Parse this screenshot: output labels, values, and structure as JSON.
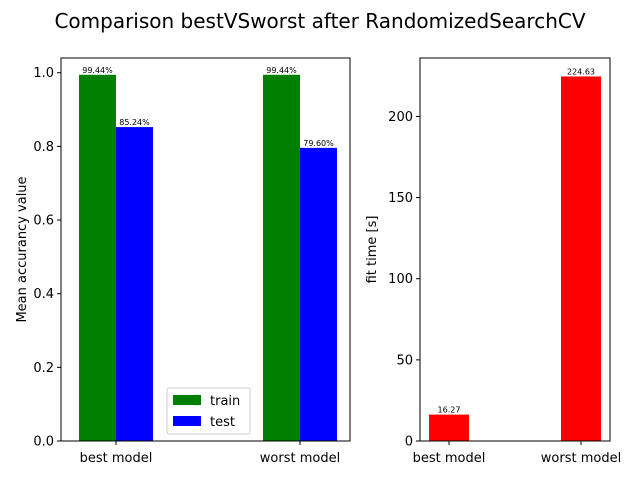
{
  "figure": {
    "title": "Comparison bestVSworst after RandomizedSearchCV"
  },
  "chart_data": [
    {
      "type": "bar",
      "categories": [
        "best model",
        "worst model"
      ],
      "series": [
        {
          "name": "train",
          "values": [
            0.9944,
            0.9944
          ],
          "color": "#008000",
          "labels": [
            "99.44%",
            "99.44%"
          ]
        },
        {
          "name": "test",
          "values": [
            0.8524,
            0.796
          ],
          "color": "#0000ff",
          "labels": [
            "85.24%",
            "79.60%"
          ]
        }
      ],
      "ylabel": "Mean accurancy value",
      "ylim": [
        0,
        1.04
      ],
      "yticks": [
        0.0,
        0.2,
        0.4,
        0.6,
        0.8,
        1.0
      ],
      "ytick_labels": [
        "0.0",
        "0.2",
        "0.4",
        "0.6",
        "0.8",
        "1.0"
      ],
      "grid": false,
      "legend": {
        "placement": "lower-center",
        "entries": [
          "train",
          "test"
        ]
      }
    },
    {
      "type": "bar",
      "categories": [
        "best model",
        "worst model"
      ],
      "series": [
        {
          "values": [
            16.27,
            224.63
          ],
          "color": "#ff0000",
          "labels": [
            "16.27",
            "224.63"
          ]
        }
      ],
      "ylabel": "fit time [s]",
      "ylim": [
        0,
        236
      ],
      "yticks": [
        0,
        50,
        100,
        150,
        200
      ],
      "ytick_labels": [
        "0",
        "50",
        "100",
        "150",
        "200"
      ],
      "grid": false
    }
  ]
}
